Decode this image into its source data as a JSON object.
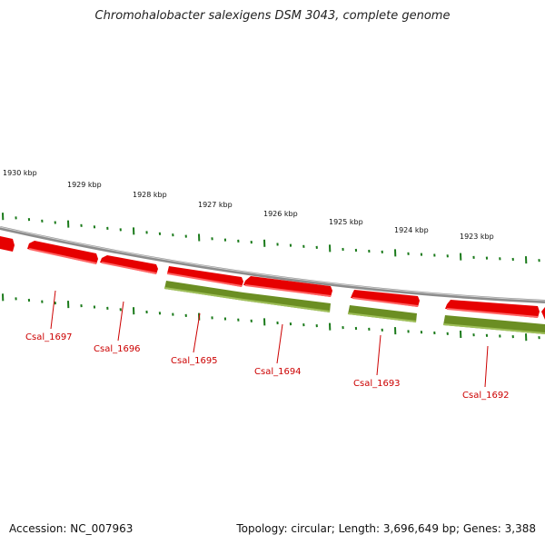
{
  "title": "Chromohalobacter salexigens DSM 3043, complete genome",
  "footer": {
    "accession": "Accession: NC_007963",
    "summary": "Topology: circular; Length: 3,696,649 bp; Genes: 3,388"
  },
  "colors": {
    "forward_gene": "#e60000",
    "reverse_gene": "#6b8e23",
    "backbone": "#8c8c8c",
    "tick": "#1a7a1a",
    "label": "#cc0000"
  },
  "scale_labels": [
    "1930 kbp",
    "1929 kbp",
    "1928 kbp",
    "1927 kbp",
    "1926 kbp",
    "1925 kbp",
    "1924 kbp",
    "1923 kbp"
  ],
  "gene_labels": [
    "Csal_1697",
    "Csal_1696",
    "Csal_1695",
    "Csal_1694",
    "Csal_1693",
    "Csal_1692"
  ]
}
